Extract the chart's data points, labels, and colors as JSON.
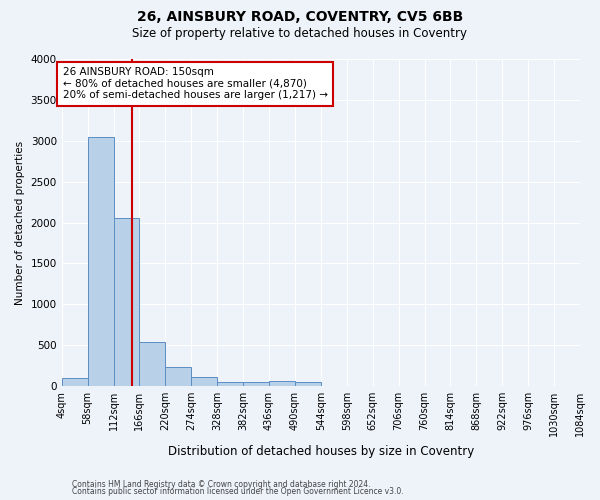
{
  "title": "26, AINSBURY ROAD, COVENTRY, CV5 6BB",
  "subtitle": "Size of property relative to detached houses in Coventry",
  "xlabel": "Distribution of detached houses by size in Coventry",
  "ylabel": "Number of detached properties",
  "footnote1": "Contains HM Land Registry data © Crown copyright and database right 2024.",
  "footnote2": "Contains public sector information licensed under the Open Government Licence v3.0.",
  "annotation_text": "26 AINSBURY ROAD: 150sqm\n← 80% of detached houses are smaller (4,870)\n20% of semi-detached houses are larger (1,217) →",
  "bin_edges": [
    4,
    58,
    112,
    166,
    220,
    274,
    328,
    382,
    436,
    490,
    544,
    598,
    652,
    706,
    760,
    814,
    868,
    922,
    976,
    1030,
    1084
  ],
  "bar_heights": [
    100,
    3050,
    2050,
    540,
    230,
    110,
    55,
    50,
    60,
    55,
    0,
    0,
    0,
    0,
    0,
    0,
    0,
    0,
    0,
    0
  ],
  "bar_color": "#b8d0e8",
  "bar_edge_color": "#5b8ec4",
  "vline_color": "#cc0000",
  "vline_x": 150,
  "annotation_box_edge_color": "#cc0000",
  "annotation_box_face_color": "#ffffff",
  "background_color": "#eef2f9",
  "ylim": [
    0,
    4000
  ],
  "yticks": [
    0,
    500,
    1000,
    1500,
    2000,
    2500,
    3000,
    3500,
    4000
  ],
  "title_fontsize": 10,
  "subtitle_fontsize": 8.5,
  "annotation_fontsize": 7.5,
  "ylabel_fontsize": 7.5,
  "xlabel_fontsize": 8.5,
  "tick_fontsize": 7,
  "footnote_fontsize": 5.5
}
